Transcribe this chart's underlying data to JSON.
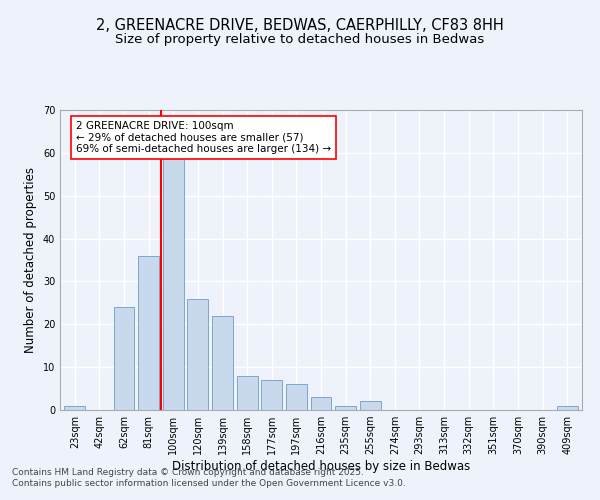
{
  "title": "2, GREENACRE DRIVE, BEDWAS, CAERPHILLY, CF83 8HH",
  "subtitle": "Size of property relative to detached houses in Bedwas",
  "xlabel": "Distribution of detached houses by size in Bedwas",
  "ylabel": "Number of detached properties",
  "footer_line1": "Contains HM Land Registry data © Crown copyright and database right 2025.",
  "footer_line2": "Contains public sector information licensed under the Open Government Licence v3.0.",
  "categories": [
    "23sqm",
    "42sqm",
    "62sqm",
    "81sqm",
    "100sqm",
    "120sqm",
    "139sqm",
    "158sqm",
    "177sqm",
    "197sqm",
    "216sqm",
    "235sqm",
    "255sqm",
    "274sqm",
    "293sqm",
    "313sqm",
    "332sqm",
    "351sqm",
    "370sqm",
    "390sqm",
    "409sqm"
  ],
  "values": [
    1,
    0,
    24,
    36,
    59,
    26,
    22,
    8,
    7,
    6,
    3,
    1,
    2,
    0,
    0,
    0,
    0,
    0,
    0,
    0,
    1
  ],
  "bar_color": "#c9d9ed",
  "bar_edge_color": "#7da7c9",
  "red_line_index": 4,
  "annotation_text": "2 GREENACRE DRIVE: 100sqm\n← 29% of detached houses are smaller (57)\n69% of semi-detached houses are larger (134) →",
  "annotation_box_color": "white",
  "annotation_box_edge_color": "red",
  "ylim": [
    0,
    70
  ],
  "yticks": [
    0,
    10,
    20,
    30,
    40,
    50,
    60,
    70
  ],
  "background_color": "#eef2fa",
  "grid_color": "white",
  "title_fontsize": 10.5,
  "subtitle_fontsize": 9.5,
  "axis_label_fontsize": 8.5,
  "tick_fontsize": 7,
  "annotation_fontsize": 7.5,
  "footer_fontsize": 6.5
}
